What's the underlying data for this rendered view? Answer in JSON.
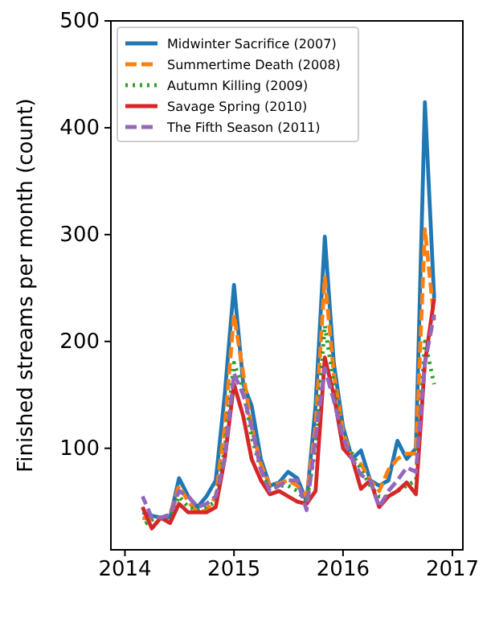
{
  "chart_data": {
    "type": "line",
    "ylabel": "Finished streams per month (count)",
    "x": [
      "2014-03",
      "2014-04",
      "2014-05",
      "2014-06",
      "2014-07",
      "2014-08",
      "2014-09",
      "2014-10",
      "2014-11",
      "2014-12",
      "2015-01",
      "2015-02",
      "2015-03",
      "2015-04",
      "2015-05",
      "2015-06",
      "2015-07",
      "2015-08",
      "2015-09",
      "2015-10",
      "2015-11",
      "2015-12",
      "2016-01",
      "2016-02",
      "2016-03",
      "2016-04",
      "2016-05",
      "2016-06",
      "2016-07",
      "2016-08",
      "2016-09",
      "2016-10",
      "2016-11"
    ],
    "series": [
      {
        "name": "Midwinter Sacrifice (2007)",
        "color": "#1f77b4",
        "line_style": "solid",
        "values": [
          40,
          37,
          35,
          35,
          72,
          55,
          45,
          55,
          70,
          150,
          253,
          160,
          140,
          90,
          65,
          68,
          78,
          72,
          50,
          140,
          298,
          180,
          120,
          90,
          98,
          70,
          65,
          70,
          107,
          90,
          100,
          424,
          240
        ]
      },
      {
        "name": "Summertime Death (2008)",
        "color": "#ff7f0e",
        "line_style": "dashed",
        "values": [
          35,
          33,
          35,
          38,
          65,
          50,
          40,
          42,
          55,
          120,
          225,
          170,
          120,
          85,
          65,
          67,
          70,
          65,
          55,
          120,
          260,
          170,
          115,
          90,
          85,
          70,
          60,
          80,
          90,
          95,
          95,
          305,
          220
        ]
      },
      {
        "name": "Autumn Killing (2009)",
        "color": "#2ca02c",
        "line_style": "dotted",
        "values": [
          28,
          33,
          35,
          36,
          55,
          45,
          42,
          45,
          50,
          100,
          180,
          155,
          110,
          80,
          62,
          65,
          65,
          60,
          50,
          100,
          215,
          160,
          110,
          95,
          80,
          65,
          55,
          55,
          60,
          65,
          70,
          200,
          160
        ]
      },
      {
        "name": "Savage Spring (2010)",
        "color": "#d62728",
        "line_style": "solid",
        "values": [
          45,
          25,
          35,
          30,
          48,
          40,
          40,
          40,
          45,
          90,
          160,
          130,
          90,
          70,
          57,
          60,
          55,
          50,
          48,
          60,
          185,
          150,
          100,
          90,
          62,
          70,
          45,
          55,
          60,
          68,
          57,
          180,
          240
        ]
      },
      {
        "name": "The Fifth Season (2011)",
        "color": "#9467bd",
        "line_style": "dashed",
        "values": [
          55,
          35,
          35,
          38,
          60,
          55,
          45,
          48,
          55,
          90,
          170,
          150,
          120,
          80,
          60,
          65,
          70,
          70,
          42,
          110,
          175,
          145,
          110,
          90,
          75,
          70,
          45,
          60,
          70,
          82,
          78,
          180,
          225
        ]
      }
    ],
    "xlim": [
      "2013-11-15",
      "2017-02-05"
    ],
    "xticks": [
      {
        "value": "2014-01",
        "label": "2014"
      },
      {
        "value": "2015-01",
        "label": "2015"
      },
      {
        "value": "2016-01",
        "label": "2016"
      },
      {
        "value": "2017-01",
        "label": "2017"
      }
    ],
    "ylim": [
      5,
      500
    ],
    "yticks": [
      100,
      200,
      300,
      400,
      500
    ],
    "grid": false,
    "legend": "top left",
    "marker": "none"
  }
}
